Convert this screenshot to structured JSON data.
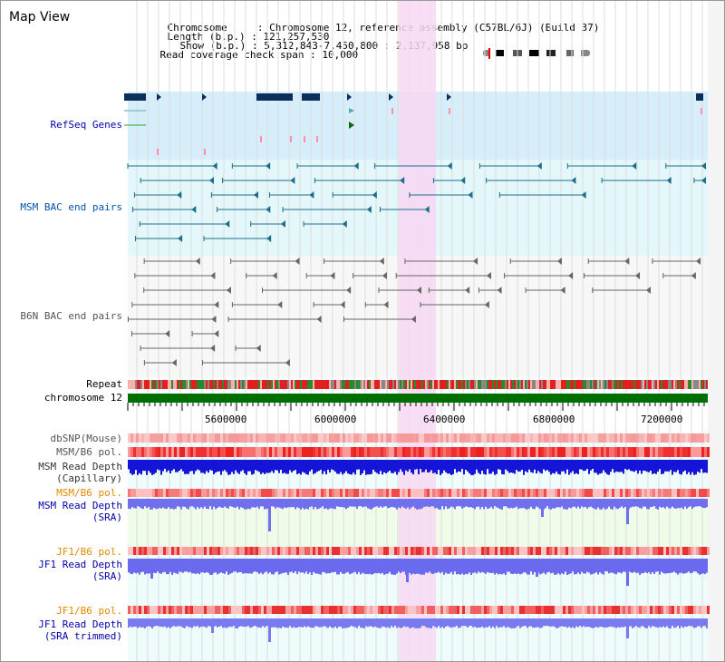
{
  "panel_title": "Map View",
  "header": {
    "chromosome_label": "Chromosome",
    "chromosome_value": "Chromosome 12, reference assembly (C57BL/6J) (Build 37)",
    "length_label": "Length (b.p.)",
    "length_value": "121,257,530",
    "show_label": "Show (b.p.)",
    "show_value": "5,312,843-7,450,800 : 2,137,958 bp",
    "coverage_label": "Read coverage check span",
    "coverage_value": "10,000"
  },
  "tracks": {
    "refseq": "RefSeq Genes",
    "msm_bac": "MSM BAC end pairs",
    "b6n_bac": "B6N BAC end pairs",
    "repeat": "Repeat",
    "chromosome": "chromosome 12",
    "dbsnp": "dbSNP(Mouse)",
    "msm_b6_pol": "MSM/B6 pol.",
    "msm_depth_cap_1": "MSM Read Depth",
    "msm_depth_cap_2": "(Capillary)",
    "msm_b6_pol_2": "MSM/B6 pol.",
    "msm_depth_sra_1": "MSM Read Depth",
    "msm_depth_sra_2": "(SRA)",
    "jf1_b6_pol": "JF1/B6 pol.",
    "jf1_depth_sra_1": "JF1 Read Depth",
    "jf1_depth_sra_2": "(SRA)",
    "jf1_b6_pol_2": "JF1/B6 pol.",
    "jf1_depth_trim_1": "JF1 Read Depth",
    "jf1_depth_trim_2": "(SRA trimmed)"
  },
  "axis": {
    "ticks": [
      "5600000",
      "6000000",
      "6400000",
      "6800000",
      "7200000"
    ]
  },
  "colors": {
    "highlight": "#f7d8f2",
    "refseq_bg": "#d6eefa",
    "msm_bac_bg": "#e4f7fa",
    "chromosome_bar": "#006f00",
    "msm_label": "#0055aa",
    "orange_label": "#e08a00",
    "depth_blue": "#0000cc"
  }
}
